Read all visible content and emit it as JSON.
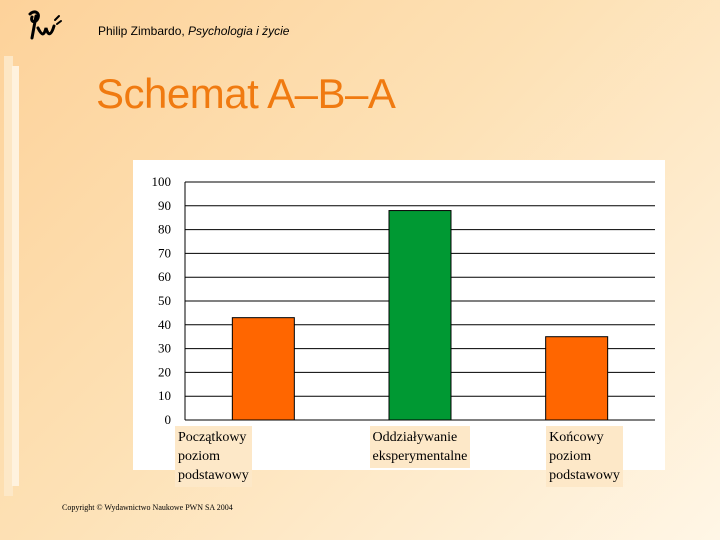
{
  "header": {
    "author": "Philip Zimbardo, ",
    "book": "Psychologia i życie"
  },
  "slide_title": "Schemat A–B–A",
  "copyright": "Copyright © Wydawnictwo Naukowe PWN SA 2004",
  "colors": {
    "title": "#f07a10",
    "bar_orange": "#ff6600",
    "bar_green": "#009933",
    "background": "#fdd29a"
  },
  "chart_data": {
    "type": "bar",
    "categories": [
      "Początkowy poziom podstawowy",
      "Oddziaływanie eksperymentalne",
      "Końcowy poziom podstawowy"
    ],
    "category_lines": [
      [
        "Początkowy",
        "poziom",
        "podstawowy"
      ],
      [
        "Oddziaływanie",
        "eksperymentalne"
      ],
      [
        "Końcowy",
        "poziom",
        "podstawowy"
      ]
    ],
    "values": [
      43,
      88,
      35
    ],
    "bar_colors": [
      "#ff6600",
      "#009933",
      "#ff6600"
    ],
    "y_ticks": [
      0,
      10,
      20,
      30,
      40,
      50,
      60,
      70,
      80,
      90,
      100
    ],
    "ylim": [
      0,
      100
    ],
    "grid": true,
    "legend": "none",
    "title": "",
    "xlabel": "",
    "ylabel": ""
  }
}
